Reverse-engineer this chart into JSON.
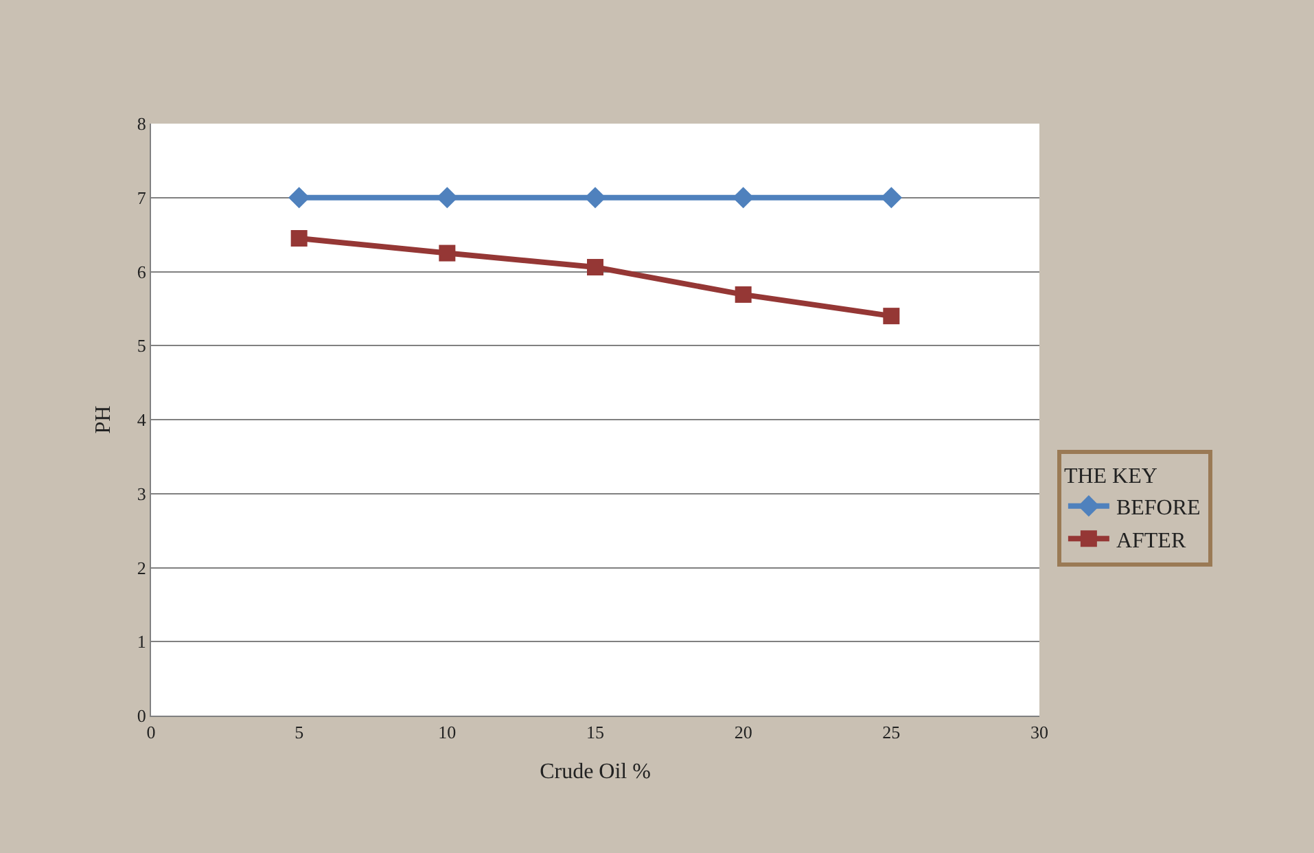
{
  "chart_data": {
    "type": "line",
    "xlabel": "Crude Oil %",
    "ylabel": "PH",
    "legend_title": "THE KEY",
    "x": [
      5,
      10,
      15,
      20,
      25
    ],
    "series": [
      {
        "name": "BEFORE",
        "color": "#4f81bd",
        "marker": "diamond",
        "values": [
          7,
          7,
          7,
          7,
          7
        ]
      },
      {
        "name": "AFTER",
        "color": "#953735",
        "marker": "square",
        "values": [
          6.45,
          6.25,
          6.06,
          5.69,
          5.4
        ]
      }
    ],
    "xlim": [
      0,
      30
    ],
    "xticks": [
      0,
      5,
      10,
      15,
      20,
      25,
      30
    ],
    "ylim": [
      0,
      8
    ],
    "yticks": [
      0,
      1,
      2,
      3,
      4,
      5,
      6,
      7,
      8
    ],
    "grid": "y",
    "legend": "right"
  }
}
